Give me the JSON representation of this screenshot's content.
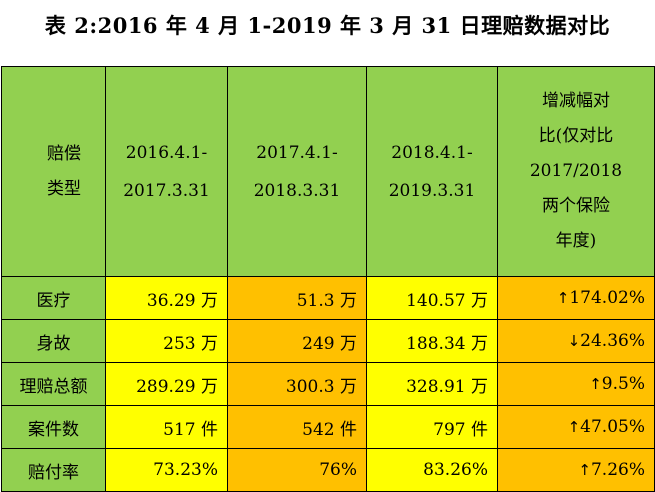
{
  "title": "表 2:2016 年 4 月 1-2019 年 3 月 31 日理赔数据对比",
  "header": {
    "type_line1": "赔偿",
    "type_line2": "类型",
    "periods": [
      {
        "line1": "2016.4.1-",
        "line2": "2017.3.31"
      },
      {
        "line1": "2017.4.1-",
        "line2": "2018.3.31"
      },
      {
        "line1": "2018.4.1-",
        "line2": "2019.3.31"
      }
    ],
    "compare_lines": [
      "增减幅对",
      "比(仅对比",
      "2017/2018",
      "两个保险",
      "年度)"
    ]
  },
  "rows": [
    {
      "label": "医疗",
      "v2016": "36.29 万",
      "v2017": "51.3 万",
      "v2018": "140.57 万",
      "arrow": "↑",
      "change": "174.02%"
    },
    {
      "label": "身故",
      "v2016": "253 万",
      "v2017": "249 万",
      "v2018": "188.34 万",
      "arrow": "↓",
      "change": "24.36%"
    },
    {
      "label": "理赔总额",
      "v2016": "289.29 万",
      "v2017": "300.3 万",
      "v2018": "328.91 万",
      "arrow": "↑",
      "change": "9.5%"
    },
    {
      "label": "案件数",
      "v2016": "517 件",
      "v2017": "542 件",
      "v2018": "797 件",
      "arrow": "↑",
      "change": "47.05%"
    },
    {
      "label": "赔付率",
      "v2016": "73.23%",
      "v2017": "76%",
      "v2018": "83.26%",
      "arrow": "↑",
      "change": "7.26%"
    }
  ],
  "colors": {
    "header_green": "#92d050",
    "yellow": "#ffff00",
    "orange": "#ffc000"
  }
}
